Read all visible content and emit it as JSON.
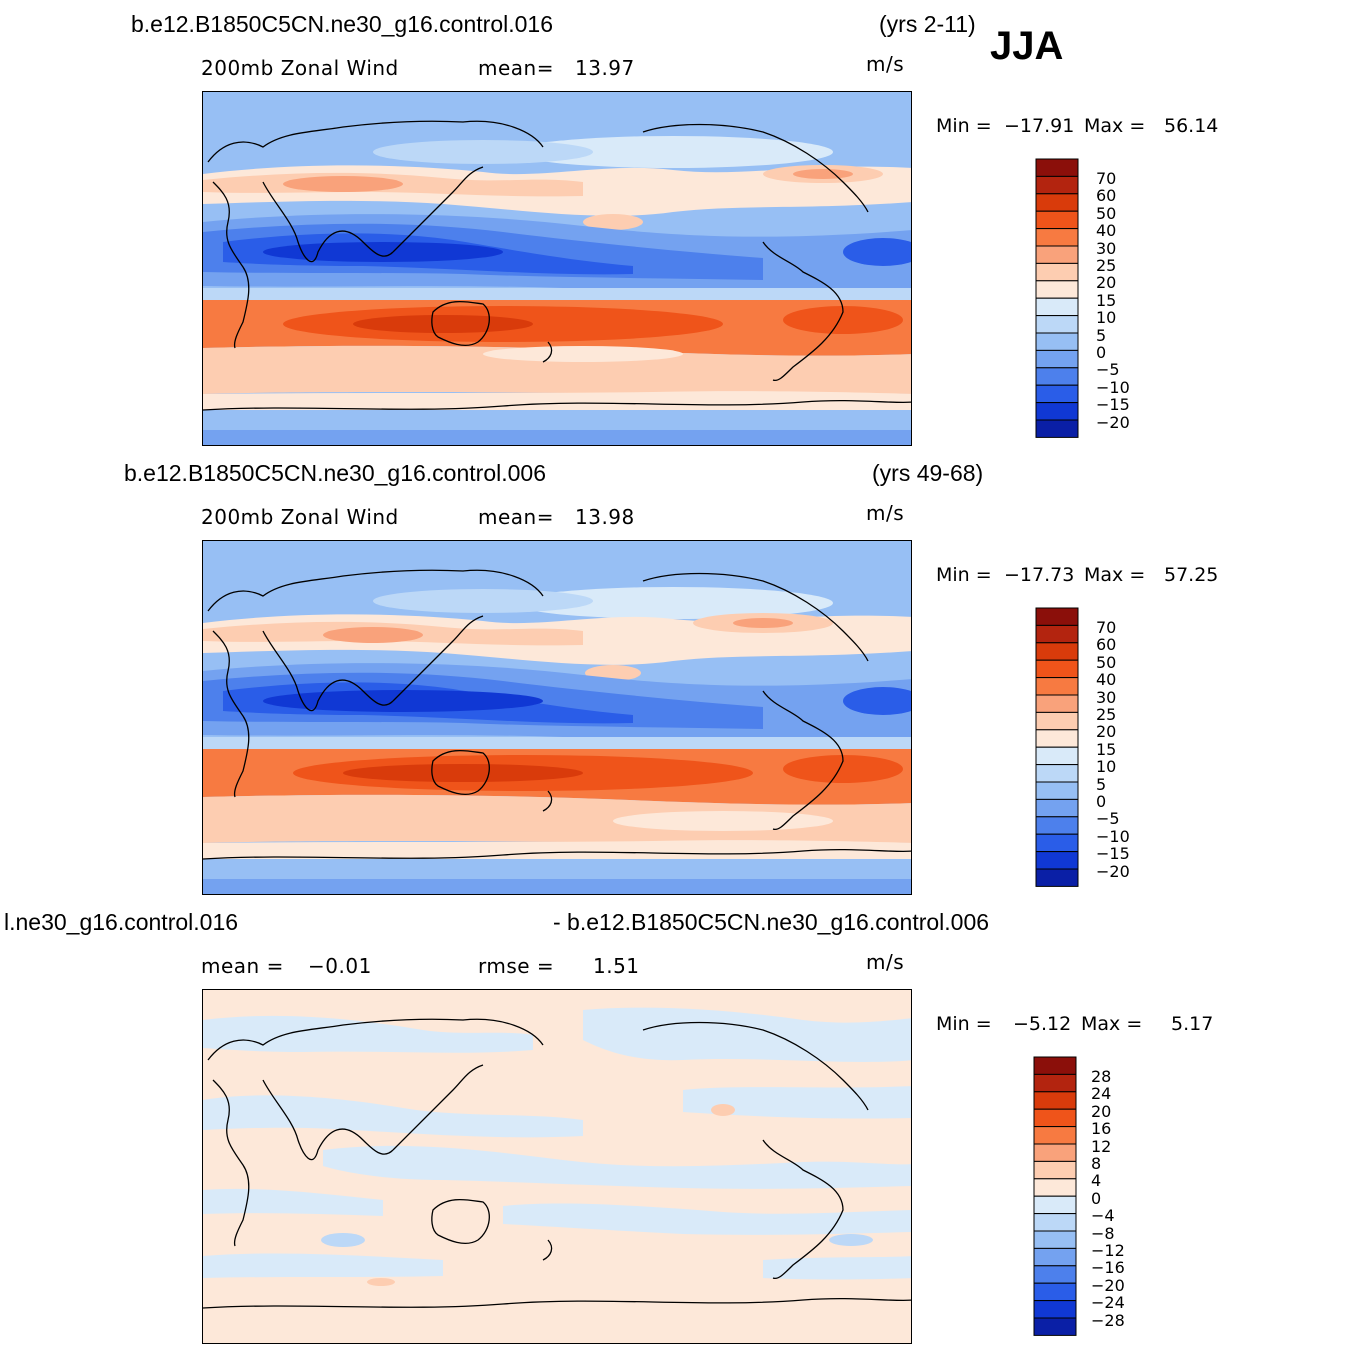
{
  "season": "JJA",
  "panels": [
    {
      "case": "b.e12.B1850C5CN.ne30_g16.control.016",
      "years": "(yrs 2-11)",
      "variable": "200mb  Zonal Wind",
      "stat1_label": "mean=",
      "stat1_value": "13.97",
      "stat2_label": "",
      "stat2_value": "",
      "units": "m/s",
      "min_label": "Min  =",
      "min_value": "−17.91",
      "max_label": "Max  =",
      "max_value": "56.14",
      "colorbar": {
        "levels": [
          "70",
          "60",
          "50",
          "40",
          "30",
          "25",
          "20",
          "15",
          "10",
          "5",
          "0",
          "−5",
          "−10",
          "−15",
          "−20"
        ],
        "colors": [
          "#8b0f0a",
          "#b3240f",
          "#d93b0b",
          "#ef541a",
          "#f77a41",
          "#f9a27b",
          "#fdcdb1",
          "#fde8d9",
          "#d9eaf9",
          "#bcd8f7",
          "#97bff4",
          "#74a2f0",
          "#4d80ec",
          "#2a5de8",
          "#1038d4",
          "#0a1fa6"
        ]
      }
    },
    {
      "case": "b.e12.B1850C5CN.ne30_g16.control.006",
      "years": "(yrs 49-68)",
      "variable": "200mb  Zonal Wind",
      "stat1_label": "mean=",
      "stat1_value": "13.98",
      "stat2_label": "",
      "stat2_value": "",
      "units": "m/s",
      "min_label": "Min  =",
      "min_value": "−17.73",
      "max_label": "Max  =",
      "max_value": "57.25",
      "colorbar": {
        "levels": [
          "70",
          "60",
          "50",
          "40",
          "30",
          "25",
          "20",
          "15",
          "10",
          "5",
          "0",
          "−5",
          "−10",
          "−15",
          "−20"
        ],
        "colors": [
          "#8b0f0a",
          "#b3240f",
          "#d93b0b",
          "#ef541a",
          "#f77a41",
          "#f9a27b",
          "#fdcdb1",
          "#fde8d9",
          "#d9eaf9",
          "#bcd8f7",
          "#97bff4",
          "#74a2f0",
          "#4d80ec",
          "#2a5de8",
          "#1038d4",
          "#0a1fa6"
        ]
      }
    },
    {
      "case": "l.ne30_g16.control.016",
      "years": "- b.e12.B1850C5CN.ne30_g16.control.006",
      "variable": "",
      "stat1_label": "mean  =",
      "stat1_value": "−0.01",
      "stat2_label": "rmse  =",
      "stat2_value": "1.51",
      "units": "m/s",
      "min_label": "Min  =",
      "min_value": "−5.12",
      "max_label": "Max  =",
      "max_value": "5.17",
      "colorbar": {
        "levels": [
          "28",
          "24",
          "20",
          "16",
          "12",
          "8",
          "4",
          "0",
          "−4",
          "−8",
          "−12",
          "−16",
          "−20",
          "−24",
          "−28"
        ],
        "colors": [
          "#8b0f0a",
          "#b3240f",
          "#d93b0b",
          "#ef541a",
          "#f77a41",
          "#f9a27b",
          "#fdcdb1",
          "#fde8d9",
          "#d9eaf9",
          "#bcd8f7",
          "#97bff4",
          "#74a2f0",
          "#4d80ec",
          "#2a5de8",
          "#1038d4",
          "#0a1fa6"
        ]
      }
    }
  ]
}
